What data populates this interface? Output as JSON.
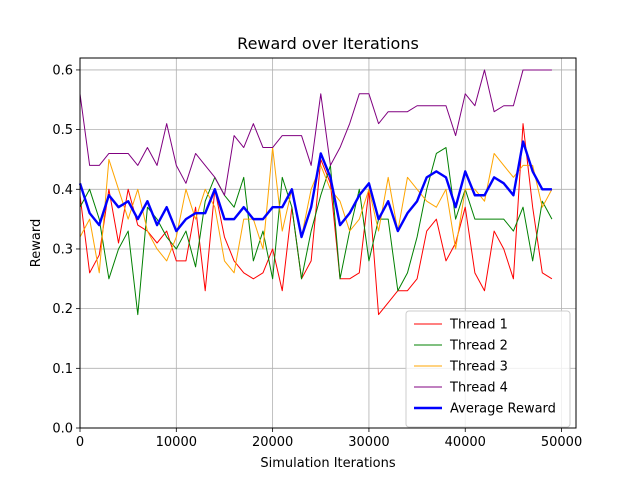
{
  "chart_data": {
    "type": "line",
    "title": "Reward over Iterations",
    "xlabel": "Simulation Iterations",
    "ylabel": "Reward",
    "xlim": [
      0,
      51500
    ],
    "ylim": [
      0,
      0.62
    ],
    "xticks": [
      0,
      10000,
      20000,
      30000,
      40000,
      50000
    ],
    "xtick_labels": [
      "0",
      "10000",
      "20000",
      "30000",
      "40000",
      "50000"
    ],
    "yticks": [
      0.0,
      0.1,
      0.2,
      0.3,
      0.4,
      0.5,
      0.6
    ],
    "ytick_labels": [
      "0.0",
      "0.1",
      "0.2",
      "0.3",
      "0.4",
      "0.5",
      "0.6"
    ],
    "grid": true,
    "legend_position": "lower-right",
    "x": [
      0,
      1000,
      2000,
      3000,
      4000,
      5000,
      6000,
      7000,
      8000,
      9000,
      10000,
      11000,
      12000,
      13000,
      14000,
      15000,
      16000,
      17000,
      18000,
      19000,
      20000,
      21000,
      22000,
      23000,
      24000,
      25000,
      26000,
      27000,
      28000,
      29000,
      30000,
      31000,
      32000,
      33000,
      34000,
      35000,
      36000,
      37000,
      38000,
      39000,
      40000,
      41000,
      42000,
      43000,
      44000,
      45000,
      46000,
      47000,
      48000,
      49000
    ],
    "series": [
      {
        "name": "Thread 1",
        "color": "#ff0000",
        "width": 1,
        "values": [
          0.39,
          0.26,
          0.29,
          0.4,
          0.31,
          0.4,
          0.34,
          0.33,
          0.31,
          0.33,
          0.28,
          0.28,
          0.37,
          0.23,
          0.4,
          0.32,
          0.28,
          0.26,
          0.25,
          0.26,
          0.3,
          0.23,
          0.37,
          0.25,
          0.28,
          0.45,
          0.41,
          0.25,
          0.25,
          0.26,
          0.4,
          0.19,
          0.21,
          0.23,
          0.23,
          0.25,
          0.33,
          0.35,
          0.28,
          0.31,
          0.37,
          0.26,
          0.23,
          0.33,
          0.3,
          0.25,
          0.51,
          0.37,
          0.26,
          0.25
        ]
      },
      {
        "name": "Thread 2",
        "color": "#008000",
        "width": 1,
        "values": [
          0.37,
          0.4,
          0.35,
          0.25,
          0.3,
          0.33,
          0.19,
          0.37,
          0.35,
          0.32,
          0.3,
          0.33,
          0.27,
          0.38,
          0.42,
          0.39,
          0.37,
          0.42,
          0.28,
          0.33,
          0.25,
          0.42,
          0.37,
          0.25,
          0.33,
          0.39,
          0.44,
          0.25,
          0.33,
          0.4,
          0.28,
          0.35,
          0.35,
          0.23,
          0.26,
          0.32,
          0.4,
          0.46,
          0.47,
          0.35,
          0.4,
          0.35,
          0.35,
          0.35,
          0.35,
          0.33,
          0.37,
          0.28,
          0.38,
          0.35
        ]
      },
      {
        "name": "Thread 3",
        "color": "#ffa500",
        "width": 1,
        "values": [
          0.32,
          0.35,
          0.26,
          0.45,
          0.4,
          0.35,
          0.4,
          0.33,
          0.3,
          0.28,
          0.32,
          0.4,
          0.35,
          0.4,
          0.37,
          0.28,
          0.26,
          0.35,
          0.35,
          0.3,
          0.47,
          0.33,
          0.4,
          0.32,
          0.4,
          0.44,
          0.4,
          0.38,
          0.33,
          0.35,
          0.4,
          0.33,
          0.42,
          0.33,
          0.42,
          0.4,
          0.38,
          0.37,
          0.4,
          0.3,
          0.4,
          0.4,
          0.38,
          0.46,
          0.44,
          0.42,
          0.44,
          0.44,
          0.37,
          0.4
        ]
      },
      {
        "name": "Thread 4",
        "color": "#800080",
        "width": 1,
        "values": [
          0.56,
          0.44,
          0.44,
          0.46,
          0.46,
          0.46,
          0.44,
          0.47,
          0.44,
          0.51,
          0.44,
          0.41,
          0.46,
          0.44,
          0.42,
          0.39,
          0.49,
          0.47,
          0.51,
          0.47,
          0.47,
          0.49,
          0.49,
          0.49,
          0.44,
          0.56,
          0.44,
          0.47,
          0.51,
          0.56,
          0.56,
          0.51,
          0.53,
          0.53,
          0.53,
          0.54,
          0.54,
          0.54,
          0.54,
          0.49,
          0.56,
          0.54,
          0.6,
          0.53,
          0.54,
          0.54,
          0.6,
          0.6,
          0.6,
          0.6
        ]
      },
      {
        "name": "Average Reward",
        "color": "#0000ff",
        "width": 2.4,
        "values": [
          0.41,
          0.36,
          0.34,
          0.39,
          0.37,
          0.38,
          0.35,
          0.38,
          0.34,
          0.37,
          0.33,
          0.35,
          0.36,
          0.36,
          0.4,
          0.35,
          0.35,
          0.37,
          0.35,
          0.35,
          0.37,
          0.37,
          0.4,
          0.32,
          0.37,
          0.46,
          0.42,
          0.34,
          0.36,
          0.39,
          0.41,
          0.35,
          0.38,
          0.33,
          0.36,
          0.38,
          0.42,
          0.43,
          0.42,
          0.37,
          0.43,
          0.39,
          0.39,
          0.42,
          0.41,
          0.39,
          0.48,
          0.43,
          0.4,
          0.4
        ]
      }
    ]
  }
}
